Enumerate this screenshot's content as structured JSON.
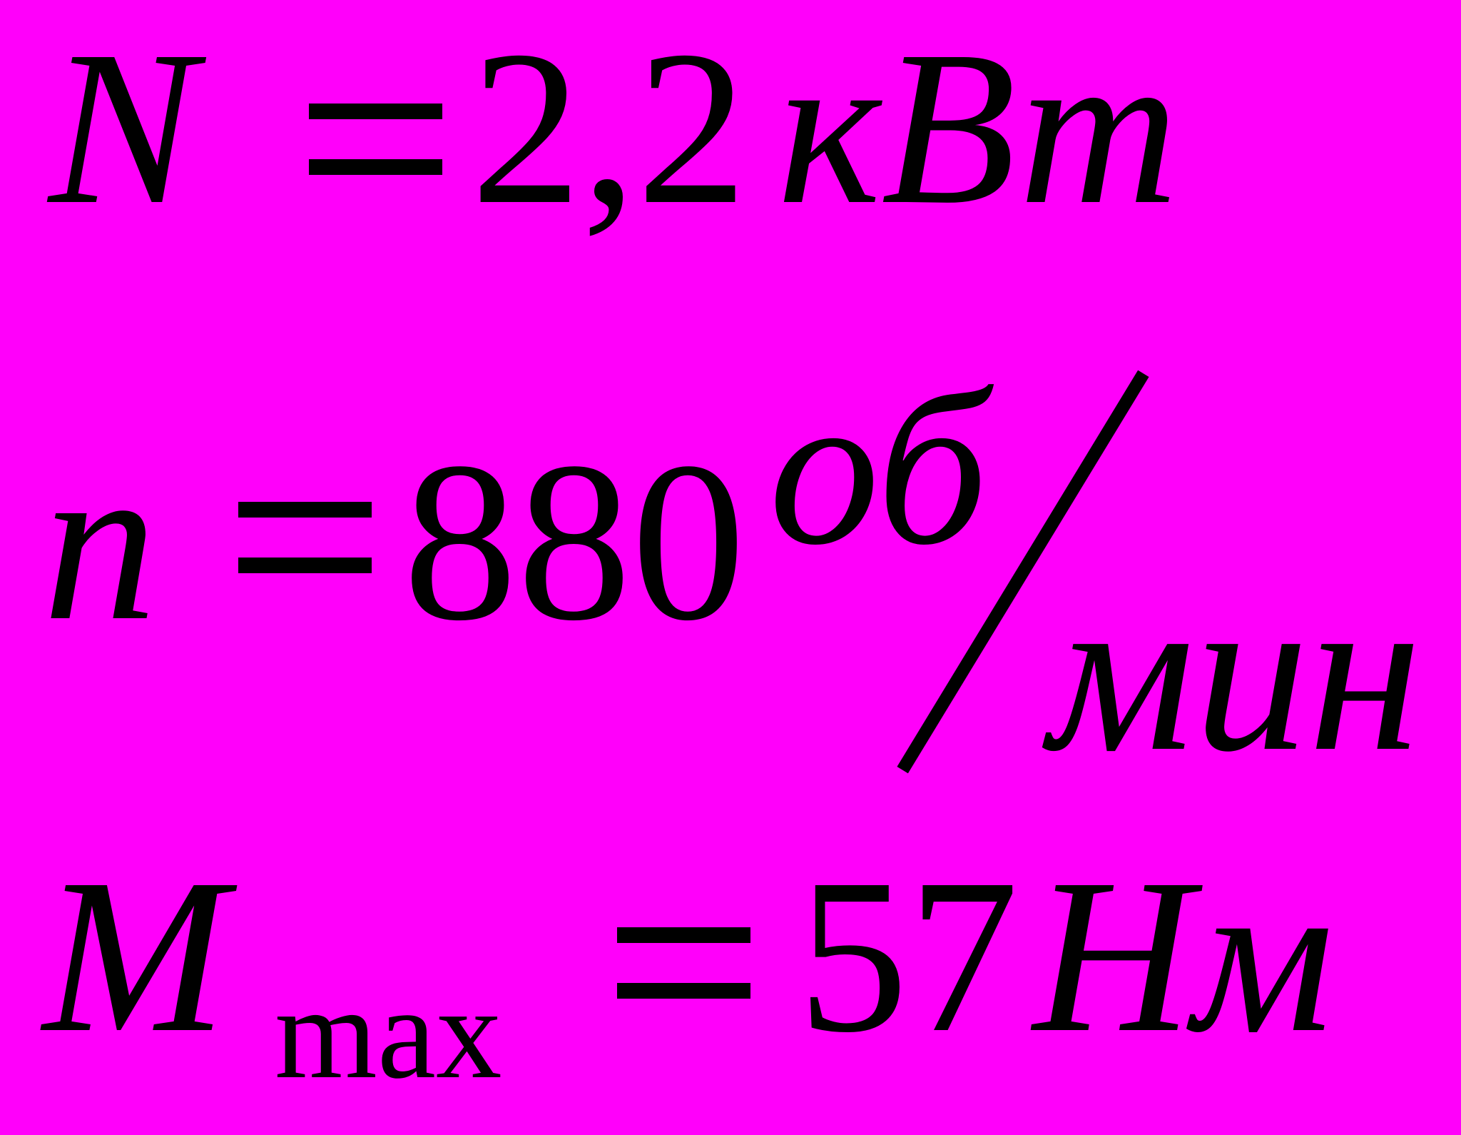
{
  "page": {
    "background_color": "#FF00FA",
    "text_color": "#000000"
  },
  "formulas": {
    "power": {
      "symbol": "N",
      "equals": "=",
      "value": "2,2",
      "unit": "кВт"
    },
    "speed": {
      "symbol": "n",
      "equals": "=",
      "value": "880",
      "unit_numerator": "об",
      "unit_slash": "/",
      "unit_denominator": "мин"
    },
    "torque": {
      "symbol": "M",
      "subscript": "max",
      "equals": "=",
      "value": "57",
      "unit": "Нм"
    }
  }
}
